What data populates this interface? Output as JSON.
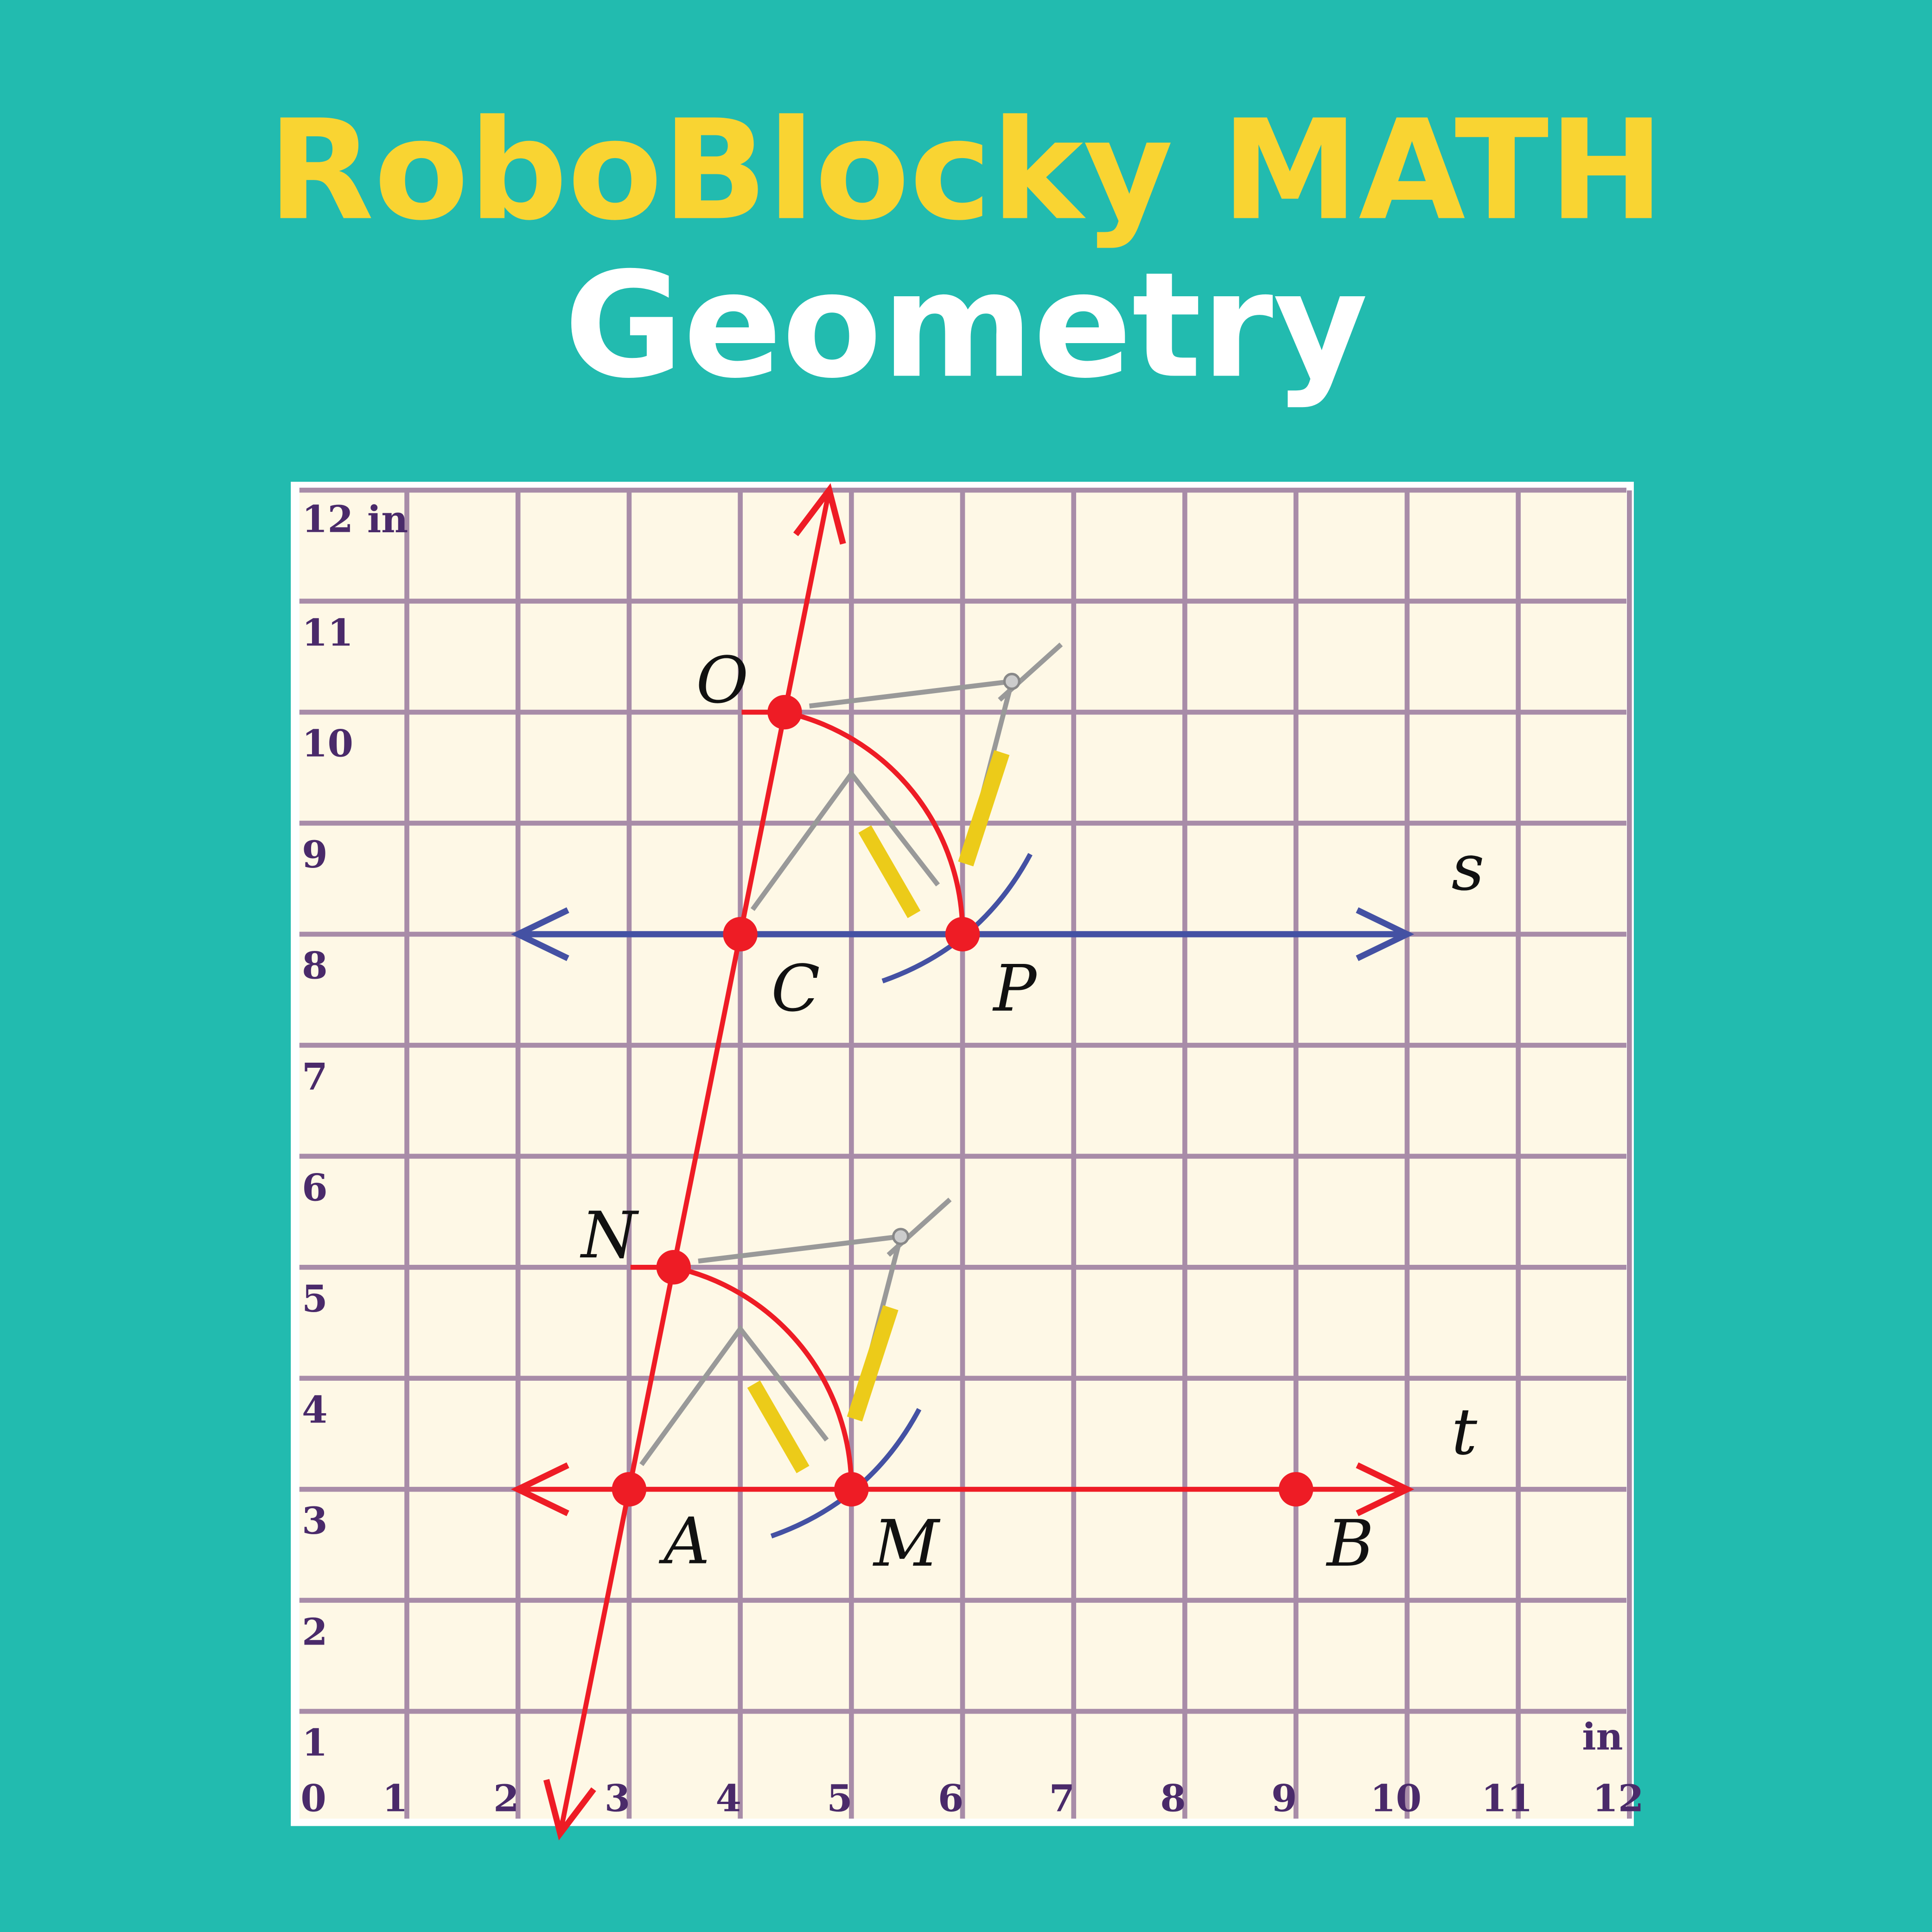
{
  "header": {
    "title": "RoboBlocky MATH",
    "subtitle": "Geometry"
  },
  "colors": {
    "background": "#22BBAF",
    "title": "#F9D432",
    "subtitle": "#FFFFFF",
    "paper": "#FEF8E6",
    "grid": "#A88CA8",
    "red": "#EE1C25",
    "blue": "#4451A3"
  },
  "diagram": {
    "y_axis_unit": "in",
    "x_axis_unit": "in",
    "x_ticks": [
      "0",
      "1",
      "2",
      "3",
      "4",
      "5",
      "6",
      "7",
      "8",
      "9",
      "10",
      "11",
      "12"
    ],
    "y_ticks": [
      "1",
      "2",
      "3",
      "4",
      "5",
      "6",
      "7",
      "8",
      "9",
      "10",
      "11",
      "12"
    ],
    "points": [
      {
        "label": "A",
        "x": 3,
        "y": 3
      },
      {
        "label": "M",
        "x": 5,
        "y": 3
      },
      {
        "label": "B",
        "x": 9,
        "y": 3
      },
      {
        "label": "N",
        "x": 3.4,
        "y": 5
      },
      {
        "label": "C",
        "x": 4,
        "y": 8
      },
      {
        "label": "P",
        "x": 6,
        "y": 8
      },
      {
        "label": "O",
        "x": 4.4,
        "y": 10
      }
    ],
    "lines": [
      {
        "label": "t",
        "through": [
          "A",
          "B"
        ],
        "color": "red"
      },
      {
        "label": "s",
        "through": [
          "C",
          "P"
        ],
        "color": "blue"
      },
      {
        "label": "",
        "through": [
          "A",
          "C"
        ],
        "color": "red"
      }
    ]
  }
}
